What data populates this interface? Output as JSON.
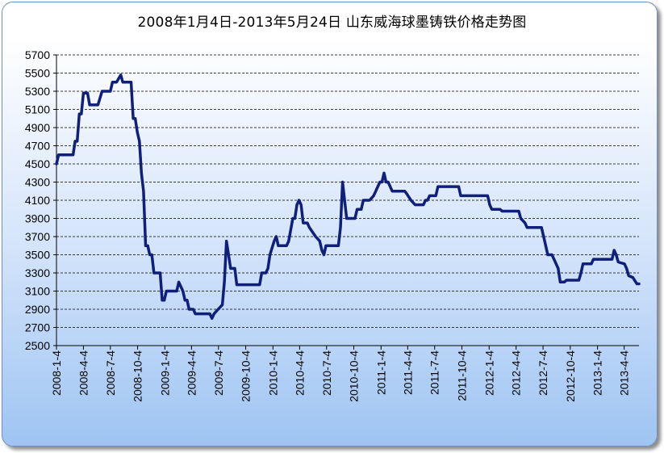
{
  "chart_data": {
    "type": "line",
    "title": "2008年1月4日-2013年5月24日 山东威海球墨铸铁价格走势图",
    "xlabel": "",
    "ylabel": "",
    "ylim": [
      2500,
      5700
    ],
    "xlim": [
      "2008-01-04",
      "2013-05-24"
    ],
    "grid": "horizontal dashed",
    "line_color": "#0f1f7a",
    "y_ticks": [
      "5700",
      "5500",
      "5300",
      "5100",
      "4900",
      "4700",
      "4500",
      "4300",
      "4100",
      "3900",
      "3700",
      "3500",
      "3300",
      "3100",
      "2900",
      "2700",
      "2500"
    ],
    "x_ticks": [
      "2008-1-4",
      "2008-4-4",
      "2008-7-4",
      "2008-10-4",
      "2009-1-4",
      "2009-4-4",
      "2009-7-4",
      "2009-10-4",
      "2010-1-4",
      "2010-4-4",
      "2010-7-4",
      "2010-10-4",
      "2011-1-4",
      "2011-4-4",
      "2011-7-4",
      "2011-10-4",
      "2012-1-4",
      "2012-4-4",
      "2012-7-4",
      "2012-10-4",
      "2013-1-4",
      "2013-4-4"
    ],
    "series": [
      {
        "points": [
          [
            "2008-01-04",
            4500
          ],
          [
            "2008-01-11",
            4600
          ],
          [
            "2008-02-29",
            4600
          ],
          [
            "2008-03-07",
            4750
          ],
          [
            "2008-03-14",
            4750
          ],
          [
            "2008-03-21",
            5050
          ],
          [
            "2008-03-28",
            5050
          ],
          [
            "2008-04-04",
            5280
          ],
          [
            "2008-04-18",
            5280
          ],
          [
            "2008-04-25",
            5150
          ],
          [
            "2008-05-23",
            5150
          ],
          [
            "2008-06-06",
            5300
          ],
          [
            "2008-07-04",
            5300
          ],
          [
            "2008-07-11",
            5400
          ],
          [
            "2008-07-25",
            5400
          ],
          [
            "2008-08-08",
            5480
          ],
          [
            "2008-08-15",
            5400
          ],
          [
            "2008-09-12",
            5400
          ],
          [
            "2008-09-19",
            5000
          ],
          [
            "2008-09-26",
            5000
          ],
          [
            "2008-10-03",
            4850
          ],
          [
            "2008-10-10",
            4750
          ],
          [
            "2008-10-17",
            4400
          ],
          [
            "2008-10-24",
            4200
          ],
          [
            "2008-10-31",
            3600
          ],
          [
            "2008-11-07",
            3600
          ],
          [
            "2008-11-14",
            3500
          ],
          [
            "2008-11-21",
            3500
          ],
          [
            "2008-11-28",
            3300
          ],
          [
            "2008-12-19",
            3300
          ],
          [
            "2008-12-26",
            3000
          ],
          [
            "2009-01-02",
            3000
          ],
          [
            "2009-01-09",
            3100
          ],
          [
            "2009-02-13",
            3100
          ],
          [
            "2009-02-20",
            3200
          ],
          [
            "2009-03-06",
            3100
          ],
          [
            "2009-03-13",
            3000
          ],
          [
            "2009-03-20",
            3000
          ],
          [
            "2009-03-27",
            2900
          ],
          [
            "2009-04-10",
            2900
          ],
          [
            "2009-04-17",
            2850
          ],
          [
            "2009-06-05",
            2850
          ],
          [
            "2009-06-12",
            2800
          ],
          [
            "2009-06-19",
            2850
          ],
          [
            "2009-07-03",
            2900
          ],
          [
            "2009-07-17",
            2950
          ],
          [
            "2009-07-24",
            3200
          ],
          [
            "2009-07-31",
            3650
          ],
          [
            "2009-08-07",
            3500
          ],
          [
            "2009-08-14",
            3350
          ],
          [
            "2009-08-28",
            3350
          ],
          [
            "2009-09-04",
            3170
          ],
          [
            "2009-11-20",
            3170
          ],
          [
            "2009-11-27",
            3300
          ],
          [
            "2009-12-11",
            3300
          ],
          [
            "2009-12-18",
            3350
          ],
          [
            "2009-12-25",
            3500
          ],
          [
            "2010-01-08",
            3650
          ],
          [
            "2010-01-15",
            3700
          ],
          [
            "2010-01-22",
            3600
          ],
          [
            "2010-02-19",
            3600
          ],
          [
            "2010-02-26",
            3650
          ],
          [
            "2010-03-12",
            3900
          ],
          [
            "2010-03-19",
            3900
          ],
          [
            "2010-03-26",
            4050
          ],
          [
            "2010-04-02",
            4100
          ],
          [
            "2010-04-09",
            4050
          ],
          [
            "2010-04-16",
            3850
          ],
          [
            "2010-04-30",
            3850
          ],
          [
            "2010-05-07",
            3800
          ],
          [
            "2010-05-28",
            3700
          ],
          [
            "2010-06-11",
            3650
          ],
          [
            "2010-06-18",
            3550
          ],
          [
            "2010-06-25",
            3500
          ],
          [
            "2010-07-02",
            3600
          ],
          [
            "2010-08-13",
            3600
          ],
          [
            "2010-08-20",
            3800
          ],
          [
            "2010-08-27",
            4300
          ],
          [
            "2010-09-03",
            4100
          ],
          [
            "2010-09-10",
            3900
          ],
          [
            "2010-10-08",
            3900
          ],
          [
            "2010-10-15",
            4000
          ],
          [
            "2010-10-29",
            4000
          ],
          [
            "2010-11-05",
            4100
          ],
          [
            "2010-11-26",
            4100
          ],
          [
            "2010-12-10",
            4150
          ],
          [
            "2010-12-17",
            4200
          ],
          [
            "2010-12-31",
            4300
          ],
          [
            "2011-01-07",
            4300
          ],
          [
            "2011-01-14",
            4400
          ],
          [
            "2011-01-21",
            4300
          ],
          [
            "2011-01-28",
            4300
          ],
          [
            "2011-02-11",
            4200
          ],
          [
            "2011-03-25",
            4200
          ],
          [
            "2011-04-01",
            4170
          ],
          [
            "2011-04-15",
            4100
          ],
          [
            "2011-04-29",
            4050
          ],
          [
            "2011-05-27",
            4050
          ],
          [
            "2011-06-03",
            4100
          ],
          [
            "2011-06-10",
            4100
          ],
          [
            "2011-06-17",
            4150
          ],
          [
            "2011-07-08",
            4150
          ],
          [
            "2011-07-15",
            4250
          ],
          [
            "2011-09-23",
            4250
          ],
          [
            "2011-09-30",
            4150
          ],
          [
            "2011-12-30",
            4150
          ],
          [
            "2012-01-06",
            4050
          ],
          [
            "2012-01-13",
            4000
          ],
          [
            "2012-02-10",
            4000
          ],
          [
            "2012-02-17",
            3980
          ],
          [
            "2012-04-13",
            3980
          ],
          [
            "2012-04-20",
            3900
          ],
          [
            "2012-05-04",
            3850
          ],
          [
            "2012-05-11",
            3800
          ],
          [
            "2012-06-29",
            3800
          ],
          [
            "2012-07-06",
            3700
          ],
          [
            "2012-07-13",
            3600
          ],
          [
            "2012-07-20",
            3500
          ],
          [
            "2012-08-03",
            3500
          ],
          [
            "2012-08-10",
            3450
          ],
          [
            "2012-08-24",
            3350
          ],
          [
            "2012-08-31",
            3200
          ],
          [
            "2012-09-14",
            3200
          ],
          [
            "2012-09-21",
            3220
          ],
          [
            "2012-11-02",
            3220
          ],
          [
            "2012-11-09",
            3300
          ],
          [
            "2012-11-16",
            3400
          ],
          [
            "2012-12-14",
            3400
          ],
          [
            "2012-12-21",
            3450
          ],
          [
            "2013-02-22",
            3450
          ],
          [
            "2013-03-01",
            3550
          ],
          [
            "2013-03-08",
            3500
          ],
          [
            "2013-03-15",
            3420
          ],
          [
            "2013-04-05",
            3400
          ],
          [
            "2013-04-12",
            3350
          ],
          [
            "2013-04-19",
            3270
          ],
          [
            "2013-05-03",
            3250
          ],
          [
            "2013-05-17",
            3180
          ],
          [
            "2013-05-24",
            3180
          ]
        ]
      }
    ]
  }
}
